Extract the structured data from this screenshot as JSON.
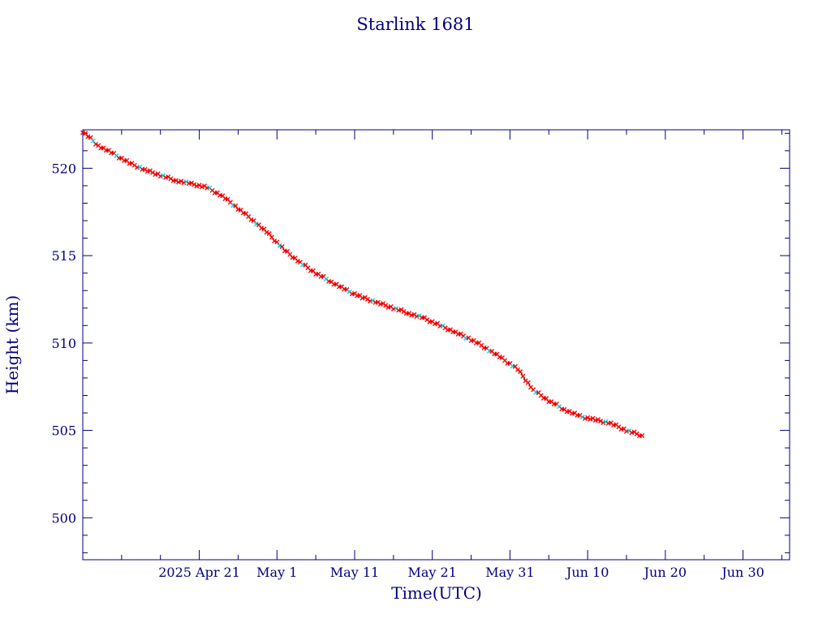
{
  "chart_data": {
    "type": "scatter",
    "title": "Starlink 1681",
    "xlabel": "Time(UTC)",
    "ylabel": "Height (km)",
    "xlim": [
      "2025-04-06",
      "2025-07-06"
    ],
    "ylim": [
      497.6,
      522.2
    ],
    "x_ticks": [
      {
        "date": "2025-04-21",
        "label": "2025 Apr 21"
      },
      {
        "date": "2025-05-01",
        "label": "May  1"
      },
      {
        "date": "2025-05-11",
        "label": "May 11"
      },
      {
        "date": "2025-05-21",
        "label": "May 21"
      },
      {
        "date": "2025-05-31",
        "label": "May 31"
      },
      {
        "date": "2025-06-10",
        "label": "Jun 10"
      },
      {
        "date": "2025-06-20",
        "label": "Jun 20"
      },
      {
        "date": "2025-06-30",
        "label": "Jun 30"
      }
    ],
    "y_ticks": [
      500,
      505,
      510,
      515,
      520
    ],
    "grid": false,
    "colors": {
      "axes": "#000080",
      "line": "#000000",
      "points": "#ff0000",
      "points_alt": "#00d8e8"
    },
    "series": [
      {
        "x": [
          "2025-04-06",
          "2025-04-08",
          "2025-04-10",
          "2025-04-12",
          "2025-04-14",
          "2025-04-16",
          "2025-04-18",
          "2025-04-20",
          "2025-04-22",
          "2025-04-24",
          "2025-04-26",
          "2025-04-28",
          "2025-04-30",
          "2025-05-02",
          "2025-05-04",
          "2025-05-06",
          "2025-05-08",
          "2025-05-10",
          "2025-05-12",
          "2025-05-14",
          "2025-05-16",
          "2025-05-18",
          "2025-05-20",
          "2025-05-22",
          "2025-05-24",
          "2025-05-26",
          "2025-05-28",
          "2025-05-30",
          "2025-06-01",
          "2025-06-03",
          "2025-06-05",
          "2025-06-07",
          "2025-06-09",
          "2025-06-11",
          "2025-06-13",
          "2025-06-15",
          "2025-06-17"
        ],
        "values": [
          522.1,
          521.3,
          520.8,
          520.3,
          519.9,
          519.6,
          519.3,
          519.1,
          518.9,
          518.4,
          517.7,
          517.0,
          516.2,
          515.3,
          514.6,
          514.0,
          513.5,
          513.0,
          512.6,
          512.3,
          512.0,
          511.7,
          511.4,
          511.0,
          510.6,
          510.2,
          509.7,
          509.1,
          508.5,
          507.3,
          506.7,
          506.2,
          505.8,
          505.6,
          505.4,
          505.0,
          504.7
        ]
      }
    ]
  }
}
